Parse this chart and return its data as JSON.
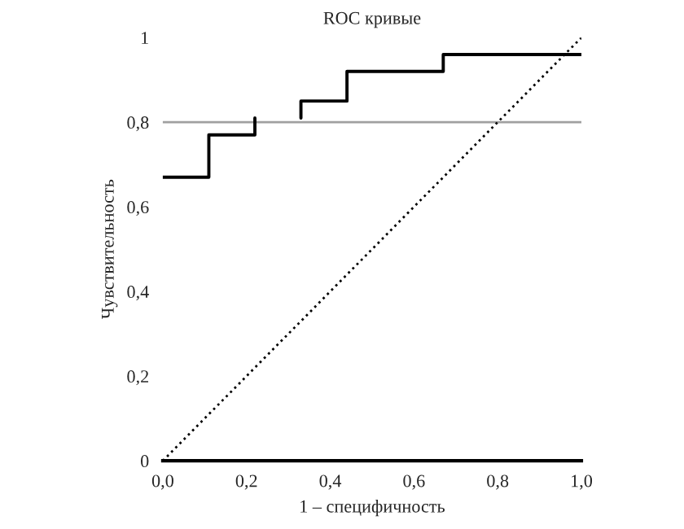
{
  "chart_data": {
    "type": "line",
    "title": "ROC кривые",
    "xlabel": "1 – специфичность",
    "ylabel": "Чувствительность",
    "series": [
      {
        "color": "#000000",
        "line_style": "solid",
        "x": [
          0,
          0.11,
          0.11,
          0.22,
          0.22,
          0.28,
          0.33,
          0.33,
          0.44,
          0.44,
          0.67,
          0.67,
          1.0
        ],
        "values": [
          0.67,
          0.67,
          0.77,
          0.77,
          0.81,
          null,
          0.81,
          0.85,
          0.85,
          0.92,
          0.92,
          0.96,
          0.96
        ]
      },
      {
        "color": "#000000",
        "line_style": "dotted",
        "x": [
          0,
          1.0
        ],
        "values": [
          0,
          1.0
        ]
      }
    ],
    "ref_lines": [
      {
        "axis": "y",
        "value": 0.8,
        "color": "#a0a0a0"
      }
    ],
    "xlim": [
      0,
      1
    ],
    "ylim": [
      0,
      1
    ],
    "xticks": [
      {
        "value": 0,
        "label": "0,0"
      },
      {
        "value": 0.2,
        "label": "0,2"
      },
      {
        "value": 0.4,
        "label": "0,4"
      },
      {
        "value": 0.6,
        "label": "0,6"
      },
      {
        "value": 0.8,
        "label": "0,8"
      },
      {
        "value": 1.0,
        "label": "1,0"
      }
    ],
    "yticks": [
      0,
      {
        "value": 0.2,
        "label": "0,2"
      },
      {
        "value": 0.4,
        "label": "0,4"
      },
      {
        "value": 0.6,
        "label": "0,6"
      },
      {
        "value": 0.8,
        "label": "0,8"
      },
      1
    ],
    "grid": false,
    "legend": false,
    "marker": "none"
  }
}
